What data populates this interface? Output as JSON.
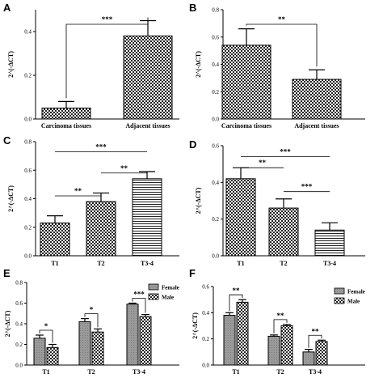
{
  "colors": {
    "axis": "#000000",
    "bar_stroke": "#000000",
    "gray_fill": "#9a9a9a"
  },
  "chart_data": [
    {
      "panel": "A",
      "type": "bar",
      "ylabel": "2^(-ΔCT)",
      "ylim": [
        0,
        0.5
      ],
      "yticks": [
        0.0,
        0.2,
        0.4
      ],
      "categories": [
        "Carcinoma tissues",
        "Adjacent tissues"
      ],
      "values": [
        0.05,
        0.38
      ],
      "errors": [
        0.03,
        0.07
      ],
      "patterns": [
        "checker",
        "checker"
      ],
      "significance": [
        {
          "from": 0,
          "to": 1,
          "label": "***"
        }
      ]
    },
    {
      "panel": "B",
      "type": "bar",
      "ylabel": "2^(-ΔCT)",
      "ylim": [
        0,
        0.8
      ],
      "yticks": [
        0.0,
        0.2,
        0.4,
        0.6,
        0.8
      ],
      "categories": [
        "Carcinoma tissues",
        "Adjacent tissues"
      ],
      "values": [
        0.54,
        0.29
      ],
      "errors": [
        0.12,
        0.07
      ],
      "patterns": [
        "checker",
        "checker"
      ],
      "significance": [
        {
          "from": 0,
          "to": 1,
          "label": "**"
        }
      ]
    },
    {
      "panel": "C",
      "type": "bar",
      "ylabel": "2^(-ΔCT)",
      "ylim": [
        0,
        0.8
      ],
      "yticks": [
        0.0,
        0.2,
        0.4,
        0.6,
        0.8
      ],
      "categories": [
        "T1",
        "T2",
        "T3-4"
      ],
      "values": [
        0.23,
        0.38,
        0.54
      ],
      "errors": [
        0.05,
        0.06,
        0.05
      ],
      "patterns": [
        "checker",
        "checker",
        "hlines"
      ],
      "significance": [
        {
          "from": 0,
          "to": 1,
          "label": "**",
          "level": 0.42
        },
        {
          "from": 1,
          "to": 2,
          "label": "**",
          "level": 0.58
        },
        {
          "from": 0,
          "to": 2,
          "label": "***",
          "level": 0.73
        }
      ]
    },
    {
      "panel": "D",
      "type": "bar",
      "ylabel": "2^(-ΔCT)",
      "ylim": [
        0,
        0.6
      ],
      "yticks": [
        0.0,
        0.2,
        0.4,
        0.6
      ],
      "categories": [
        "T1",
        "T2",
        "T3-4"
      ],
      "values": [
        0.42,
        0.26,
        0.14
      ],
      "errors": [
        0.06,
        0.05,
        0.04
      ],
      "patterns": [
        "checker",
        "checker",
        "hlines"
      ],
      "significance": [
        {
          "from": 0,
          "to": 1,
          "label": "**",
          "level": 0.48
        },
        {
          "from": 1,
          "to": 2,
          "label": "***",
          "level": 0.35
        },
        {
          "from": 0,
          "to": 2,
          "label": "***",
          "level": 0.54
        }
      ]
    },
    {
      "panel": "E",
      "type": "bar",
      "ylabel": "2^(-ΔCT)",
      "ylim": [
        0,
        0.8
      ],
      "yticks": [
        0.0,
        0.2,
        0.4,
        0.6,
        0.8
      ],
      "categories": [
        "T1",
        "T2",
        "T3-4"
      ],
      "series": [
        {
          "name": "Female",
          "values": [
            0.26,
            0.42,
            0.59
          ],
          "errors": [
            0.03,
            0.03,
            0.01
          ],
          "pattern": "gray"
        },
        {
          "name": "Male",
          "values": [
            0.17,
            0.32,
            0.47
          ],
          "errors": [
            0.03,
            0.03,
            0.02
          ],
          "pattern": "checker"
        }
      ],
      "significance": [
        {
          "category": 0,
          "label": "*"
        },
        {
          "category": 1,
          "label": "*"
        },
        {
          "category": 2,
          "label": "***"
        }
      ],
      "legend": "top-right"
    },
    {
      "panel": "F",
      "type": "bar",
      "ylabel": "2^(-ΔCT)",
      "ylim": [
        0,
        0.6
      ],
      "yticks": [
        0.0,
        0.2,
        0.4,
        0.6
      ],
      "categories": [
        "T1",
        "T2",
        "T3-4"
      ],
      "series": [
        {
          "name": "Female",
          "values": [
            0.38,
            0.22,
            0.1
          ],
          "errors": [
            0.02,
            0.01,
            0.02
          ],
          "pattern": "gray"
        },
        {
          "name": "Male",
          "values": [
            0.48,
            0.3,
            0.18
          ],
          "errors": [
            0.02,
            0.01,
            0.01
          ],
          "pattern": "checker"
        }
      ],
      "significance": [
        {
          "category": 0,
          "label": "**"
        },
        {
          "category": 1,
          "label": "**"
        },
        {
          "category": 2,
          "label": "**"
        }
      ],
      "legend": "top-right"
    }
  ]
}
